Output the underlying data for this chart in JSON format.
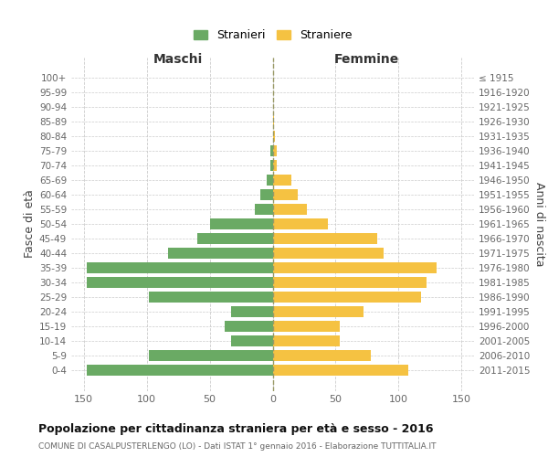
{
  "age_groups": [
    "100+",
    "95-99",
    "90-94",
    "85-89",
    "80-84",
    "75-79",
    "70-74",
    "65-69",
    "60-64",
    "55-59",
    "50-54",
    "45-49",
    "40-44",
    "35-39",
    "30-34",
    "25-29",
    "20-24",
    "15-19",
    "10-14",
    "5-9",
    "0-4"
  ],
  "birth_years": [
    "≤ 1915",
    "1916-1920",
    "1921-1925",
    "1926-1930",
    "1931-1935",
    "1936-1940",
    "1941-1945",
    "1946-1950",
    "1951-1955",
    "1956-1960",
    "1961-1965",
    "1966-1970",
    "1971-1975",
    "1976-1980",
    "1981-1985",
    "1986-1990",
    "1991-1995",
    "1996-2000",
    "2001-2005",
    "2006-2010",
    "2011-2015"
  ],
  "maschi": [
    0,
    0,
    0,
    0,
    0,
    2,
    2,
    5,
    10,
    14,
    50,
    60,
    83,
    148,
    148,
    98,
    33,
    38,
    33,
    98,
    148
  ],
  "femmine": [
    0,
    0,
    0,
    1,
    2,
    3,
    3,
    15,
    20,
    27,
    44,
    83,
    88,
    130,
    122,
    118,
    72,
    53,
    53,
    78,
    108
  ],
  "color_maschi": "#6aaa64",
  "color_femmine": "#f5c242",
  "title": "Popolazione per cittadinanza straniera per età e sesso - 2016",
  "subtitle": "COMUNE DI CASALPUSTERLENGO (LO) - Dati ISTAT 1° gennaio 2016 - Elaborazione TUTTITALIA.IT",
  "ylabel_left": "Fasce di età",
  "ylabel_right": "Anni di nascita",
  "label_maschi": "Maschi",
  "label_femmine": "Femmine",
  "legend_maschi": "Stranieri",
  "legend_femmine": "Straniere",
  "xlim": 160,
  "background_color": "#ffffff",
  "grid_color": "#cccccc"
}
